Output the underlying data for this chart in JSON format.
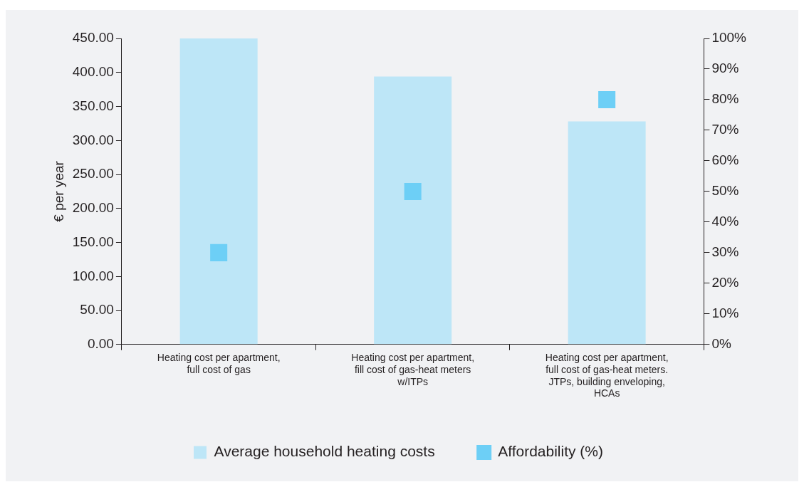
{
  "chart_data": {
    "type": "bar",
    "ylabel": "€ per year",
    "categories": [
      "Heating cost per apartment, full cost of gas",
      "Heating cost per apartment, fill cost of gas-heat meters w/ITPs",
      "Heating cost per apartment, full cost of gas-heat meters. JTPs, building enveloping, HCAs"
    ],
    "series": [
      {
        "name": "Average household heating costs",
        "color": "#bde6f7",
        "values": [
          450,
          394,
          328
        ]
      },
      {
        "name": "Affordability (%)",
        "type": "scatter",
        "marker": "square",
        "axis": "y2",
        "color": "#6dcff6",
        "values": [
          30,
          50,
          80
        ]
      }
    ],
    "ylim": [
      0,
      450
    ],
    "yticks": [
      {
        "value": 0,
        "label": "0.00"
      },
      {
        "value": 50,
        "label": "50.00"
      },
      {
        "value": 100,
        "label": "100.00"
      },
      {
        "value": 150,
        "label": "150.00"
      },
      {
        "value": 200,
        "label": "200.00"
      },
      {
        "value": 250,
        "label": "250.00"
      },
      {
        "value": 300,
        "label": "300.00"
      },
      {
        "value": 350,
        "label": "350.00"
      },
      {
        "value": 400,
        "label": "400.00"
      },
      {
        "value": 450,
        "label": "450.00"
      }
    ],
    "y2lim": [
      0,
      100
    ],
    "y2ticks": [
      {
        "value": 0,
        "label": "0%"
      },
      {
        "value": 10,
        "label": "10%"
      },
      {
        "value": 20,
        "label": "20%"
      },
      {
        "value": 30,
        "label": "30%"
      },
      {
        "value": 40,
        "label": "40%"
      },
      {
        "value": 50,
        "label": "50%"
      },
      {
        "value": 60,
        "label": "60%"
      },
      {
        "value": 70,
        "label": "70%"
      },
      {
        "value": 80,
        "label": "80%"
      },
      {
        "value": 90,
        "label": "90%"
      },
      {
        "value": 100,
        "label": "100%"
      }
    ],
    "grid": false,
    "legend": "bottom"
  }
}
